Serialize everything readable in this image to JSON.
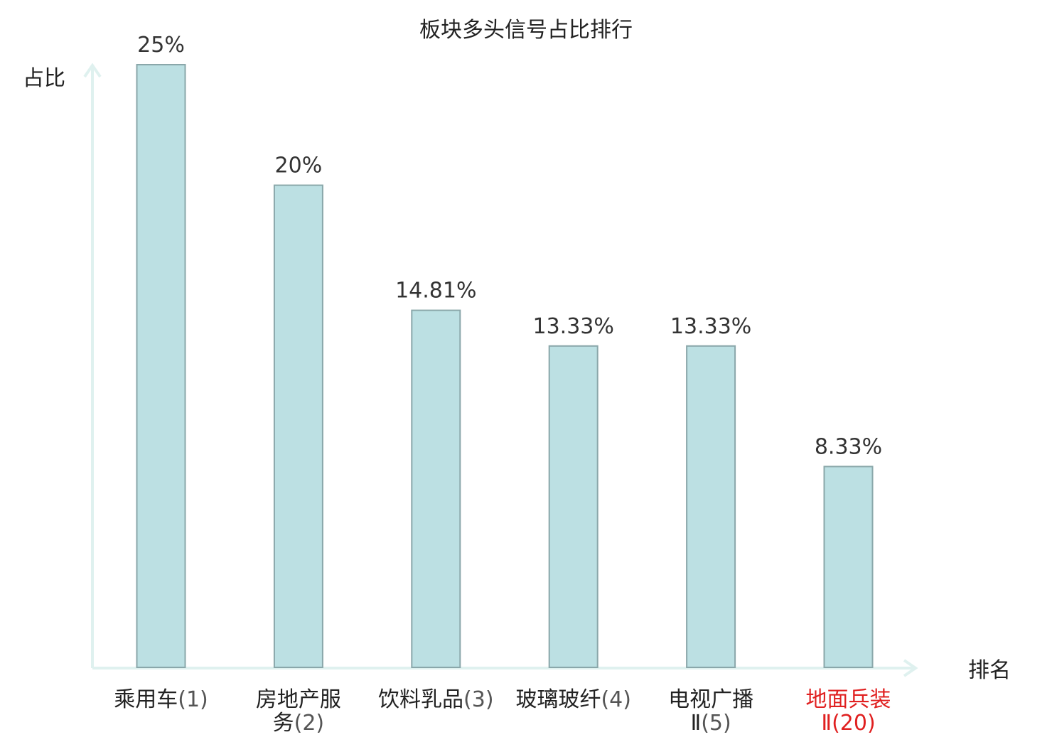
{
  "chart_data": {
    "type": "bar",
    "title": "板块多头信号占比排行",
    "ylabel": "占比",
    "xlabel": "排名",
    "categories": [
      {
        "name": "乘用车",
        "rank": "(1)",
        "highlight": false
      },
      {
        "name": "房地产服务",
        "rank": "(2)",
        "highlight": false
      },
      {
        "name": "饮料乳品",
        "rank": "(3)",
        "highlight": false
      },
      {
        "name": "玻璃玻纤",
        "rank": "(4)",
        "highlight": false
      },
      {
        "name": "电视广播Ⅱ",
        "rank": "(5)",
        "highlight": false
      },
      {
        "name": "地面兵装Ⅱ",
        "rank": "(20)",
        "highlight": true
      }
    ],
    "values": [
      25,
      20,
      14.81,
      13.33,
      13.33,
      8.33
    ],
    "value_labels": [
      "25%",
      "20%",
      "14.81%",
      "13.33%",
      "13.33%",
      "8.33%"
    ],
    "ylim": [
      0,
      25
    ],
    "grid": false,
    "colors": {
      "bar_fill": "#bce0e3",
      "bar_stroke": "#8aa7aa",
      "axis": "#dff1ef",
      "text": "#333333",
      "title": "#222222",
      "highlight": "#e02020"
    }
  }
}
